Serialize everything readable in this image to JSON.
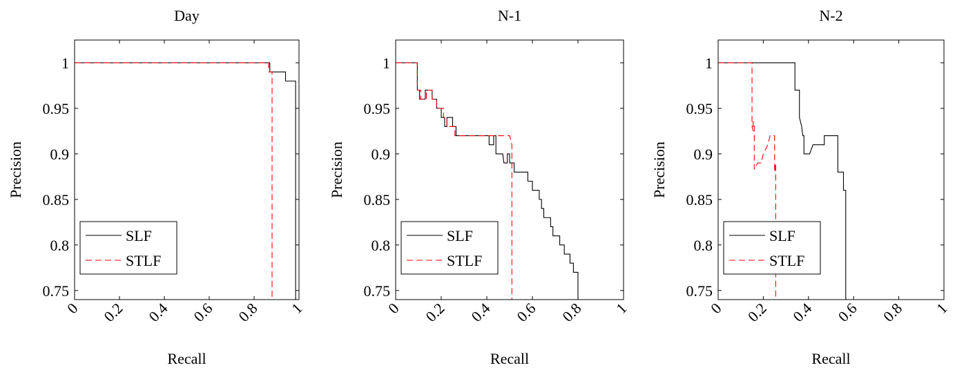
{
  "chart_data": [
    {
      "type": "line",
      "title": "Day",
      "xlabel": "Recall",
      "ylabel": "Precision",
      "xlim": [
        0,
        1
      ],
      "ylim": [
        0.74,
        1.025
      ],
      "xticks": [
        "0",
        "0.2",
        "0.4",
        "0.6",
        "0.8",
        "1"
      ],
      "yticks": [
        "0.75",
        "0.8",
        "0.85",
        "0.9",
        "0.95",
        "1"
      ],
      "legend_position": "bottom-left",
      "series": [
        {
          "name": "SLF",
          "color": "#000000",
          "dash": "solid",
          "points": [
            [
              0,
              1
            ],
            [
              0.87,
              1
            ],
            [
              0.87,
              0.99
            ],
            [
              0.94,
              0.99
            ],
            [
              0.94,
              0.98
            ],
            [
              0.985,
              0.98
            ],
            [
              0.985,
              0.74
            ]
          ]
        },
        {
          "name": "STLF",
          "color": "#ff0000",
          "dash": "dashed",
          "points": [
            [
              0,
              1
            ],
            [
              0.865,
              1
            ],
            [
              0.865,
              0.99
            ],
            [
              0.88,
              0.99
            ],
            [
              0.88,
              0.74
            ]
          ]
        }
      ]
    },
    {
      "type": "line",
      "title": "N-1",
      "xlabel": "Recall",
      "ylabel": "Precision",
      "xlim": [
        0,
        1
      ],
      "ylim": [
        0.74,
        1.025
      ],
      "xticks": [
        "0",
        "0.2",
        "0.4",
        "0.6",
        "0.8",
        "1"
      ],
      "yticks": [
        "0.75",
        "0.8",
        "0.85",
        "0.9",
        "0.95",
        "1"
      ],
      "legend_position": "bottom-left",
      "series": [
        {
          "name": "SLF",
          "color": "#000000",
          "dash": "solid",
          "points": [
            [
              0,
              1
            ],
            [
              0.095,
              1
            ],
            [
              0.095,
              0.97
            ],
            [
              0.105,
              0.97
            ],
            [
              0.105,
              0.96
            ],
            [
              0.13,
              0.96
            ],
            [
              0.13,
              0.97
            ],
            [
              0.16,
              0.97
            ],
            [
              0.16,
              0.96
            ],
            [
              0.18,
              0.96
            ],
            [
              0.18,
              0.95
            ],
            [
              0.2,
              0.95
            ],
            [
              0.2,
              0.94
            ],
            [
              0.215,
              0.94
            ],
            [
              0.215,
              0.93
            ],
            [
              0.225,
              0.93
            ],
            [
              0.225,
              0.94
            ],
            [
              0.25,
              0.94
            ],
            [
              0.25,
              0.93
            ],
            [
              0.265,
              0.93
            ],
            [
              0.265,
              0.92
            ],
            [
              0.41,
              0.92
            ],
            [
              0.41,
              0.91
            ],
            [
              0.43,
              0.91
            ],
            [
              0.43,
              0.92
            ],
            [
              0.44,
              0.92
            ],
            [
              0.44,
              0.9
            ],
            [
              0.47,
              0.9
            ],
            [
              0.475,
              0.89
            ],
            [
              0.49,
              0.89
            ],
            [
              0.49,
              0.9
            ],
            [
              0.5,
              0.9
            ],
            [
              0.5,
              0.89
            ],
            [
              0.52,
              0.89
            ],
            [
              0.52,
              0.88
            ],
            [
              0.58,
              0.88
            ],
            [
              0.58,
              0.87
            ],
            [
              0.6,
              0.87
            ],
            [
              0.6,
              0.86
            ],
            [
              0.63,
              0.86
            ],
            [
              0.63,
              0.85
            ],
            [
              0.64,
              0.85
            ],
            [
              0.64,
              0.84
            ],
            [
              0.65,
              0.84
            ],
            [
              0.65,
              0.83
            ],
            [
              0.68,
              0.83
            ],
            [
              0.68,
              0.82
            ],
            [
              0.69,
              0.82
            ],
            [
              0.69,
              0.81
            ],
            [
              0.72,
              0.81
            ],
            [
              0.72,
              0.8
            ],
            [
              0.74,
              0.8
            ],
            [
              0.74,
              0.79
            ],
            [
              0.765,
              0.79
            ],
            [
              0.765,
              0.78
            ],
            [
              0.78,
              0.78
            ],
            [
              0.78,
              0.77
            ],
            [
              0.8,
              0.77
            ],
            [
              0.8,
              0.74
            ]
          ]
        },
        {
          "name": "STLF",
          "color": "#ff0000",
          "dash": "dashed",
          "points": [
            [
              0,
              1
            ],
            [
              0.095,
              1
            ],
            [
              0.095,
              0.97
            ],
            [
              0.11,
              0.97
            ],
            [
              0.11,
              0.96
            ],
            [
              0.135,
              0.96
            ],
            [
              0.135,
              0.97
            ],
            [
              0.16,
              0.97
            ],
            [
              0.16,
              0.96
            ],
            [
              0.18,
              0.96
            ],
            [
              0.18,
              0.95
            ],
            [
              0.21,
              0.95
            ],
            [
              0.21,
              0.94
            ],
            [
              0.225,
              0.94
            ],
            [
              0.225,
              0.93
            ],
            [
              0.26,
              0.93
            ],
            [
              0.26,
              0.92
            ],
            [
              0.5,
              0.92
            ],
            [
              0.51,
              0.91
            ],
            [
              0.51,
              0.74
            ]
          ]
        }
      ]
    },
    {
      "type": "line",
      "title": "N-2",
      "xlabel": "Recall",
      "ylabel": "Precision",
      "xlim": [
        0,
        1
      ],
      "ylim": [
        0.74,
        1.025
      ],
      "xticks": [
        "0",
        "0.2",
        "0.4",
        "0.6",
        "0.8",
        "1"
      ],
      "yticks": [
        "0.75",
        "0.8",
        "0.85",
        "0.9",
        "0.95",
        "1"
      ],
      "legend_position": "bottom-left",
      "series": [
        {
          "name": "SLF",
          "color": "#000000",
          "dash": "solid",
          "points": [
            [
              0,
              1
            ],
            [
              0.34,
              1
            ],
            [
              0.34,
              0.97
            ],
            [
              0.36,
              0.97
            ],
            [
              0.36,
              0.94
            ],
            [
              0.37,
              0.93
            ],
            [
              0.375,
              0.92
            ],
            [
              0.38,
              0.92
            ],
            [
              0.38,
              0.9
            ],
            [
              0.405,
              0.9
            ],
            [
              0.42,
              0.91
            ],
            [
              0.47,
              0.91
            ],
            [
              0.47,
              0.92
            ],
            [
              0.53,
              0.92
            ],
            [
              0.53,
              0.88
            ],
            [
              0.555,
              0.88
            ],
            [
              0.555,
              0.86
            ],
            [
              0.565,
              0.86
            ],
            [
              0.565,
              0.74
            ]
          ]
        },
        {
          "name": "STLF",
          "color": "#ff0000",
          "dash": "dashed",
          "points": [
            [
              0,
              1
            ],
            [
              0.15,
              1
            ],
            [
              0.15,
              0.93
            ],
            [
              0.155,
              0.925
            ],
            [
              0.155,
              0.935
            ],
            [
              0.16,
              0.935
            ],
            [
              0.16,
              0.883
            ],
            [
              0.175,
              0.89
            ],
            [
              0.19,
              0.89
            ],
            [
              0.2,
              0.9
            ],
            [
              0.22,
              0.91
            ],
            [
              0.23,
              0.92
            ],
            [
              0.25,
              0.92
            ],
            [
              0.25,
              0.88
            ],
            [
              0.255,
              0.89
            ],
            [
              0.255,
              0.74
            ]
          ]
        }
      ]
    }
  ]
}
